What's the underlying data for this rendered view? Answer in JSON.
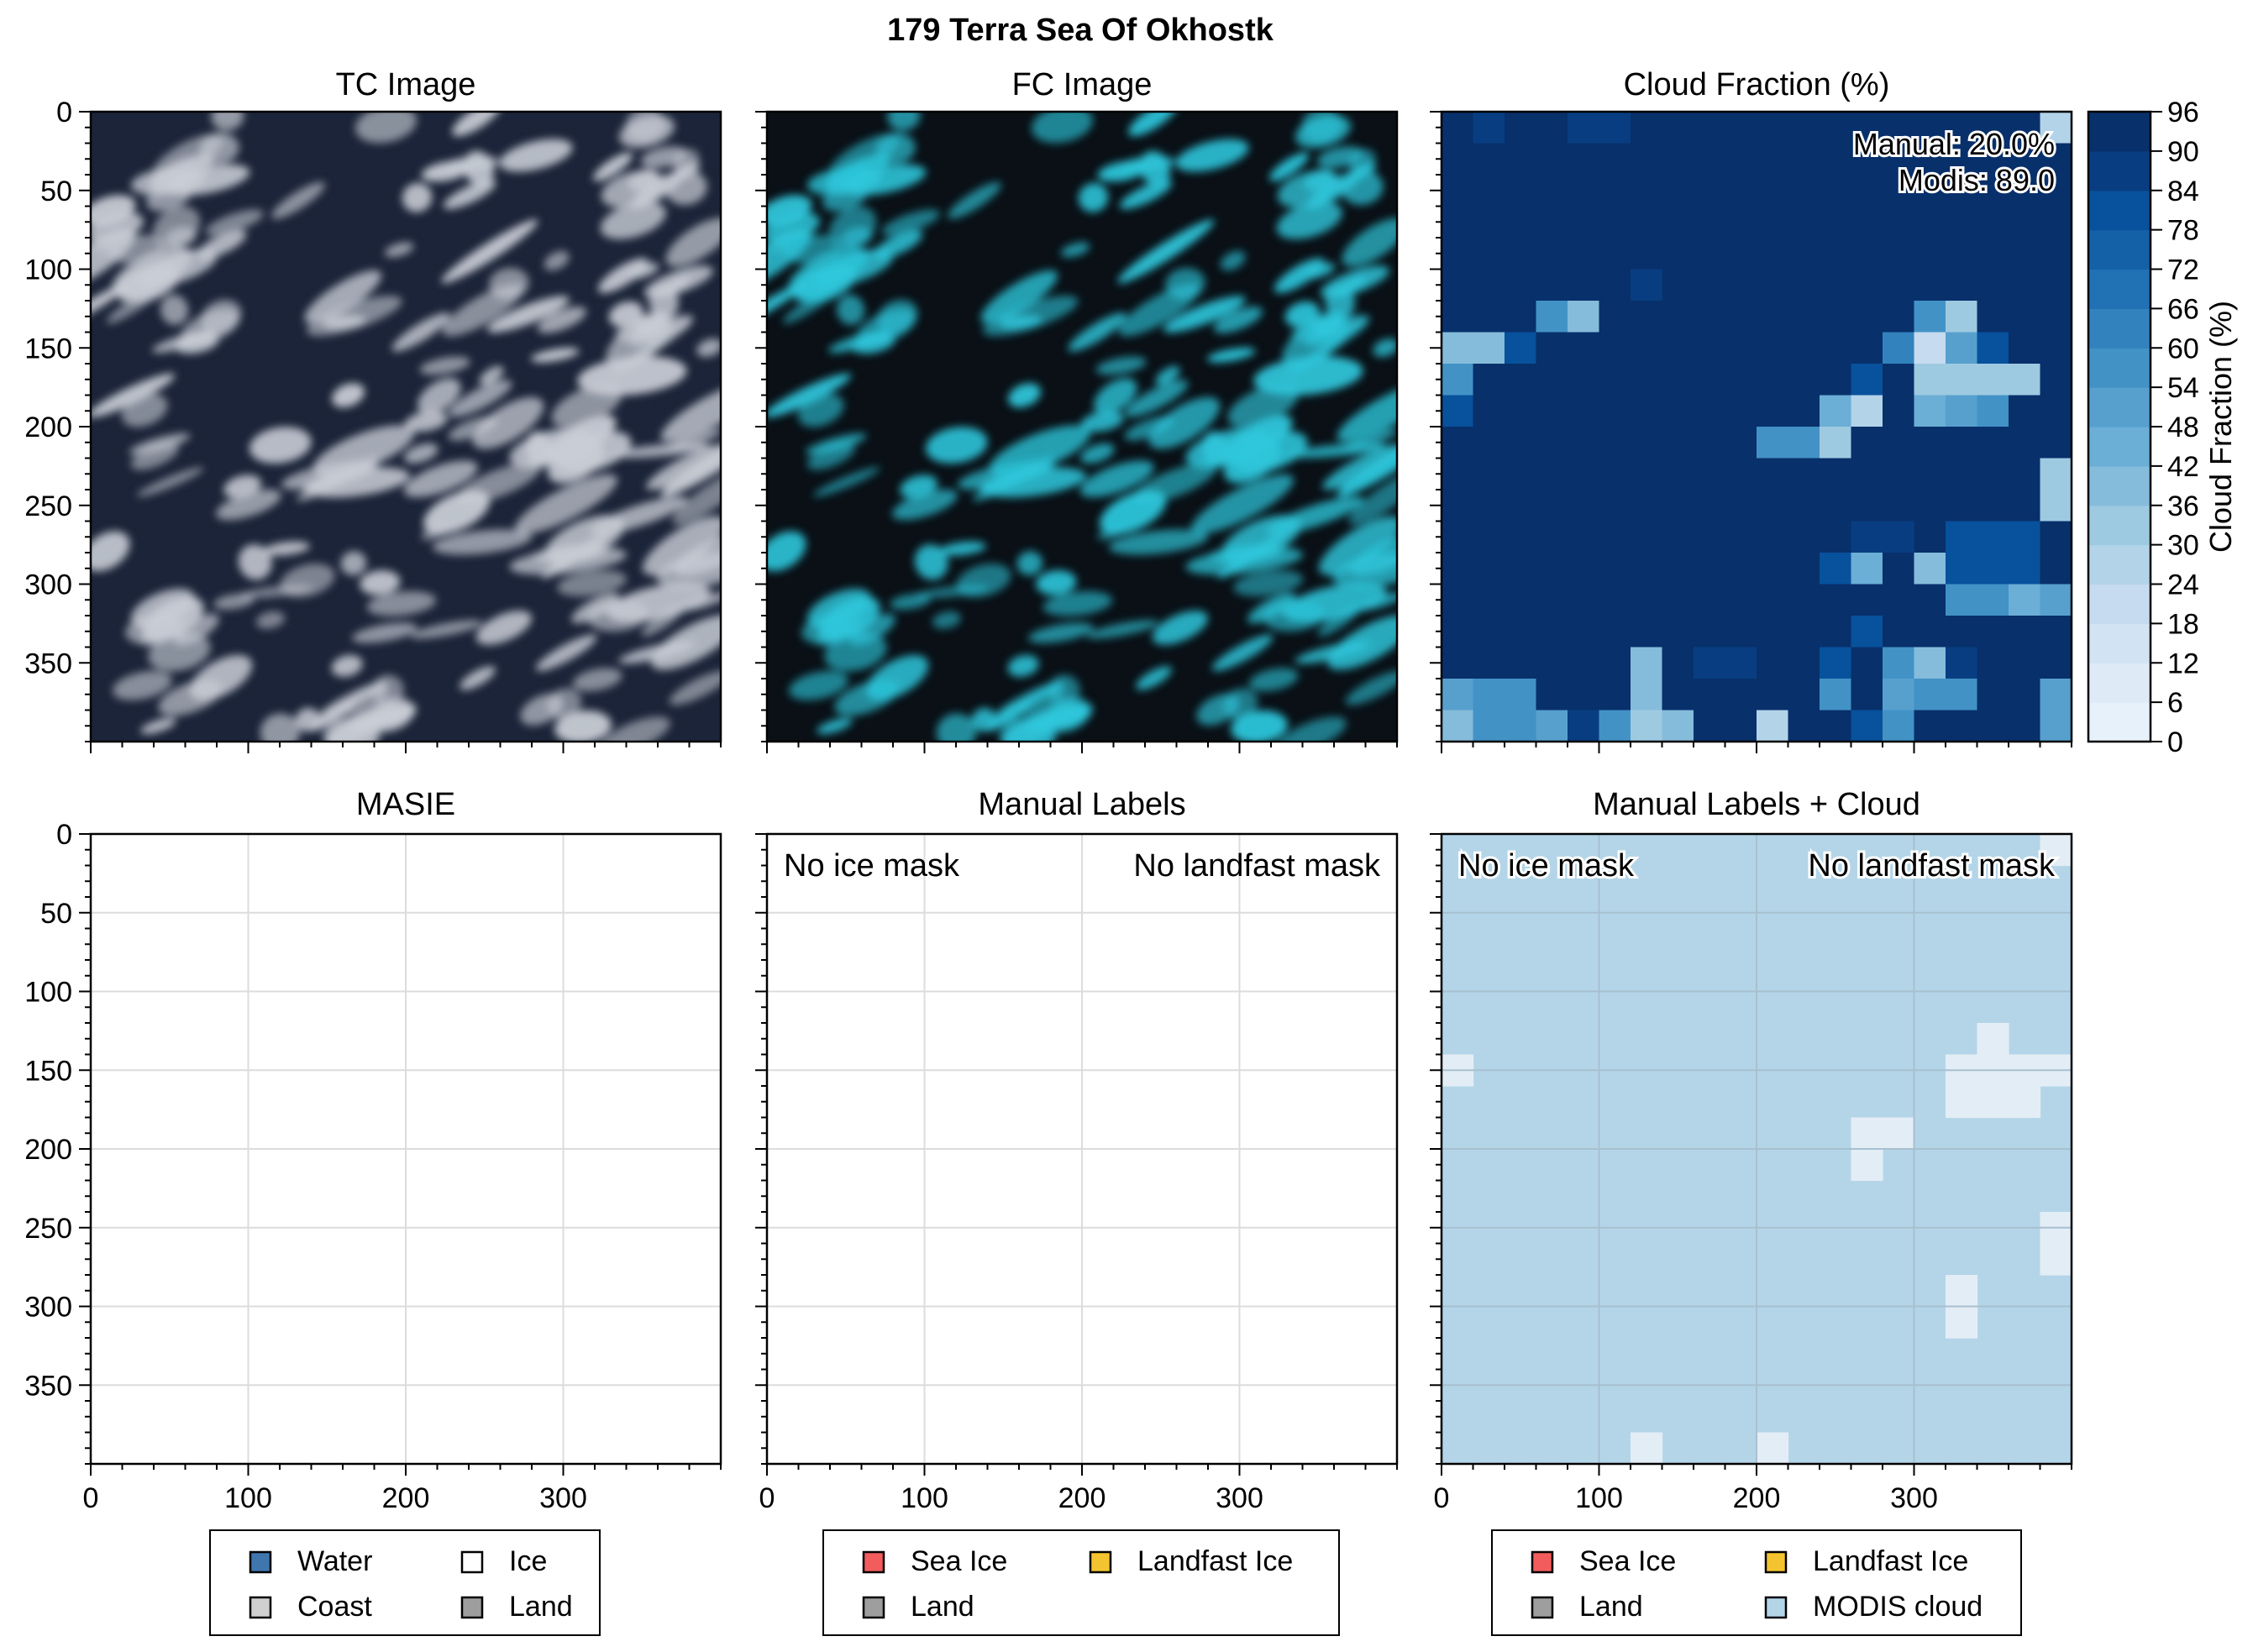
{
  "figure_title": "179 Terra Sea Of Okhostk",
  "colors": {
    "tc_bg": "#1b2438",
    "tc_cloud": "#c9ced6",
    "fc_bg": "#0a1016",
    "fc_cloud": "#2ec7dc",
    "water": "#3f76ad",
    "coast": "#cfcfcf",
    "ice": "#ffffff",
    "land": "#9e9e9e",
    "sea_ice": "#f25c5c",
    "landfast_ice": "#f4c430",
    "modis_cloud": "#b4d5e8",
    "modis_clear": "#e3edf6",
    "grid": "#dcdcdc"
  },
  "chart_data": [
    {
      "panel": "tc",
      "type": "image",
      "title": "TC Image",
      "image_desc": "true-color satellite view: white cloud streaks over dark ocean",
      "xlim": [
        0,
        400
      ],
      "ylim": [
        400,
        0
      ],
      "yticks": [
        0,
        50,
        100,
        150,
        200,
        250,
        300,
        350
      ]
    },
    {
      "panel": "fc",
      "type": "image",
      "title": "FC Image",
      "image_desc": "false-color satellite view: cyan cloud streaks over black ocean",
      "xlim": [
        0,
        400
      ],
      "ylim": [
        400,
        0
      ]
    },
    {
      "panel": "cloud",
      "type": "heatmap",
      "title": "Cloud Fraction (%)",
      "xlim": [
        0,
        400
      ],
      "ylim": [
        400,
        0
      ],
      "xticks": [
        100,
        200,
        300
      ],
      "grid_shape": [
        20,
        20
      ],
      "cell_size": 20,
      "values": [
        [
          96,
          92,
          96,
          96,
          94,
          94,
          96,
          96,
          96,
          96,
          96,
          96,
          96,
          96,
          96,
          96,
          96,
          96,
          96,
          30
        ],
        [
          96,
          96,
          96,
          96,
          96,
          96,
          96,
          96,
          96,
          96,
          96,
          96,
          96,
          96,
          96,
          96,
          96,
          96,
          96,
          96
        ],
        [
          96,
          96,
          96,
          96,
          96,
          96,
          96,
          96,
          96,
          96,
          96,
          96,
          96,
          96,
          96,
          96,
          96,
          96,
          96,
          96
        ],
        [
          96,
          96,
          96,
          96,
          96,
          96,
          96,
          96,
          96,
          96,
          96,
          96,
          96,
          96,
          96,
          96,
          96,
          96,
          96,
          96
        ],
        [
          96,
          96,
          96,
          96,
          96,
          96,
          96,
          96,
          96,
          96,
          96,
          96,
          96,
          96,
          96,
          96,
          96,
          96,
          96,
          96
        ],
        [
          96,
          96,
          96,
          96,
          96,
          96,
          92,
          96,
          96,
          96,
          96,
          96,
          96,
          96,
          96,
          96,
          96,
          96,
          96,
          96
        ],
        [
          96,
          96,
          96,
          63,
          42,
          96,
          96,
          96,
          96,
          96,
          96,
          96,
          96,
          96,
          96,
          60,
          38,
          96,
          96,
          96
        ],
        [
          42,
          42,
          85,
          96,
          96,
          96,
          96,
          96,
          96,
          96,
          96,
          96,
          96,
          96,
          66,
          24,
          54,
          84,
          96,
          96
        ],
        [
          63,
          96,
          96,
          96,
          96,
          96,
          96,
          96,
          96,
          96,
          96,
          96,
          96,
          84,
          96,
          38,
          36,
          38,
          36,
          96
        ],
        [
          88,
          96,
          96,
          96,
          96,
          96,
          96,
          96,
          96,
          96,
          96,
          96,
          50,
          30,
          96,
          48,
          54,
          60,
          96,
          96
        ],
        [
          96,
          96,
          96,
          96,
          96,
          96,
          96,
          96,
          96,
          96,
          60,
          60,
          36,
          96,
          96,
          96,
          96,
          96,
          96,
          96
        ],
        [
          96,
          96,
          96,
          96,
          96,
          96,
          96,
          96,
          96,
          96,
          96,
          96,
          96,
          96,
          96,
          96,
          96,
          96,
          96,
          36
        ],
        [
          96,
          96,
          96,
          96,
          96,
          96,
          96,
          96,
          96,
          96,
          96,
          96,
          96,
          96,
          96,
          96,
          96,
          96,
          96,
          36
        ],
        [
          96,
          96,
          96,
          96,
          96,
          96,
          96,
          96,
          96,
          96,
          96,
          96,
          96,
          90,
          90,
          96,
          84,
          84,
          84,
          96
        ],
        [
          96,
          96,
          96,
          96,
          96,
          96,
          96,
          96,
          96,
          96,
          96,
          96,
          84,
          48,
          96,
          42,
          84,
          84,
          84,
          96
        ],
        [
          96,
          96,
          96,
          96,
          96,
          96,
          96,
          96,
          96,
          96,
          96,
          96,
          96,
          96,
          96,
          96,
          60,
          60,
          48,
          54
        ],
        [
          96,
          96,
          96,
          96,
          96,
          96,
          96,
          96,
          96,
          96,
          96,
          96,
          96,
          84,
          96,
          96,
          96,
          96,
          96,
          96
        ],
        [
          96,
          96,
          96,
          96,
          96,
          96,
          42,
          96,
          90,
          90,
          96,
          96,
          84,
          96,
          60,
          42,
          90,
          96,
          96,
          96
        ],
        [
          54,
          60,
          60,
          96,
          96,
          96,
          42,
          96,
          96,
          96,
          96,
          96,
          60,
          96,
          54,
          60,
          60,
          96,
          96,
          54
        ],
        [
          42,
          60,
          60,
          54,
          90,
          60,
          36,
          42,
          96,
          96,
          30,
          96,
          96,
          84,
          60,
          96,
          96,
          96,
          96,
          54
        ]
      ],
      "annotations": [
        "Manual: 20.0%",
        "Modis: 89.0"
      ],
      "colorbar": {
        "label": "Cloud Fraction (%)",
        "ticks": [
          0,
          6,
          12,
          18,
          24,
          30,
          36,
          42,
          48,
          54,
          60,
          66,
          72,
          78,
          84,
          90,
          96
        ],
        "colors": [
          "#f7fbff",
          "#e7f1fa",
          "#deebf7",
          "#d2e3f3",
          "#c6dbef",
          "#b3d3e8",
          "#9ecae1",
          "#85bcdb",
          "#6baed6",
          "#57a0ce",
          "#4292c6",
          "#3282be",
          "#2171b5",
          "#1461a8",
          "#08519c",
          "#083e81",
          "#08306b"
        ],
        "range": [
          0,
          96
        ]
      }
    },
    {
      "panel": "masie",
      "type": "heatmap",
      "title": "MASIE",
      "xlim": [
        0,
        400
      ],
      "ylim": [
        400,
        0
      ],
      "xticks": [
        0,
        100,
        200,
        300
      ],
      "yticks": [
        0,
        50,
        100,
        150,
        200,
        250,
        300,
        350
      ],
      "grid": true,
      "legend": {
        "placement": "bottom",
        "entries": [
          {
            "label": "Water",
            "color": "#3f76ad"
          },
          {
            "label": "Ice",
            "color": "#ffffff"
          },
          {
            "label": "Coast",
            "color": "#cfcfcf"
          },
          {
            "label": "Land",
            "color": "#9e9e9e"
          }
        ]
      }
    },
    {
      "panel": "manual",
      "type": "heatmap",
      "title": "Manual Labels",
      "xlim": [
        0,
        400
      ],
      "ylim": [
        400,
        0
      ],
      "xticks": [
        0,
        100,
        200,
        300
      ],
      "grid": true,
      "annotations": [
        "No ice mask",
        "No landfast mask"
      ],
      "legend": {
        "placement": "bottom",
        "entries": [
          {
            "label": "Sea Ice",
            "color": "#f25c5c"
          },
          {
            "label": "Landfast Ice",
            "color": "#f4c430"
          },
          {
            "label": "Land",
            "color": "#9e9e9e"
          }
        ]
      }
    },
    {
      "panel": "manual_cloud",
      "type": "heatmap",
      "title": "Manual Labels + Cloud",
      "xlim": [
        0,
        400
      ],
      "ylim": [
        400,
        0
      ],
      "xticks": [
        0,
        100,
        200,
        300
      ],
      "grid": true,
      "annotations": [
        "No ice mask",
        "No landfast mask"
      ],
      "clear_cells": [
        [
          0,
          19
        ],
        [
          6,
          17
        ],
        [
          7,
          0
        ],
        [
          7,
          16
        ],
        [
          7,
          17
        ],
        [
          7,
          18
        ],
        [
          7,
          19
        ],
        [
          8,
          16
        ],
        [
          8,
          17
        ],
        [
          8,
          18
        ],
        [
          9,
          13
        ],
        [
          9,
          14
        ],
        [
          10,
          13
        ],
        [
          12,
          19
        ],
        [
          13,
          19
        ],
        [
          14,
          16
        ],
        [
          15,
          16
        ],
        [
          19,
          6
        ],
        [
          19,
          10
        ]
      ],
      "legend": {
        "placement": "bottom",
        "entries": [
          {
            "label": "Sea Ice",
            "color": "#f25c5c"
          },
          {
            "label": "Landfast Ice",
            "color": "#f4c430"
          },
          {
            "label": "Land",
            "color": "#9e9e9e"
          },
          {
            "label": "MODIS cloud",
            "color": "#b4d5e8"
          }
        ]
      }
    }
  ]
}
